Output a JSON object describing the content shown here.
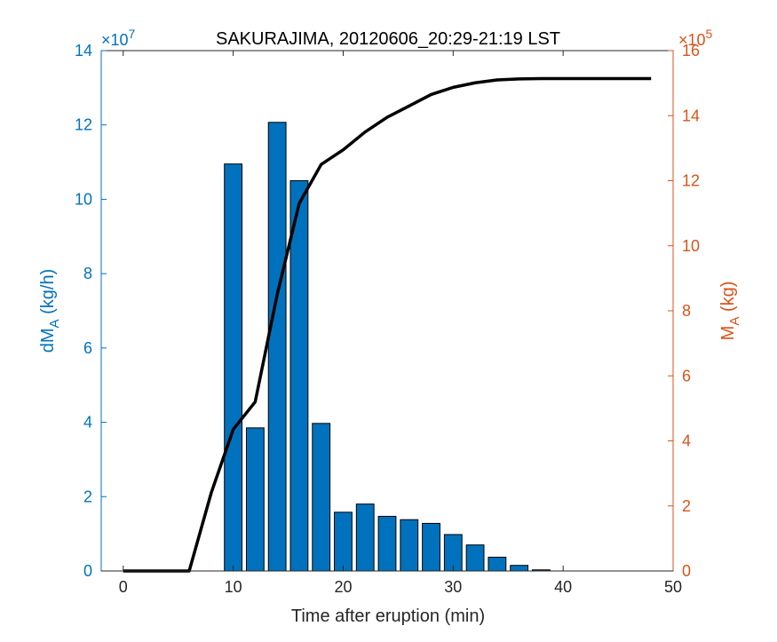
{
  "chart_data": {
    "type": "bar",
    "title": "SAKURAJIMA, 20120606_20:29-21:19 LST",
    "xlabel": "Time after eruption (min)",
    "xlim": [
      -2,
      50
    ],
    "xticks": [
      0,
      10,
      20,
      30,
      40,
      50
    ],
    "left_axis": {
      "label_main": "dM",
      "label_sub": "A",
      "label_unit": "(kg/h)",
      "exponent_base": "×10",
      "exponent_power": "7",
      "ylim": [
        0,
        14
      ],
      "ticks": [
        0,
        2,
        4,
        6,
        8,
        10,
        12,
        14
      ],
      "color": "#0072BD"
    },
    "right_axis": {
      "label_main": "M",
      "label_sub": "A",
      "label_unit": "(kg)",
      "exponent_base": "×10",
      "exponent_power": "5",
      "ylim": [
        0,
        16
      ],
      "ticks": [
        0,
        2,
        4,
        6,
        8,
        10,
        12,
        14,
        16
      ],
      "color": "#D95319"
    },
    "bar_series": {
      "axis": "left",
      "color": "#0072BD",
      "bar_width": 1.6,
      "x": [
        10,
        12,
        14,
        16,
        18,
        20,
        22,
        24,
        26,
        28,
        30,
        32,
        34,
        36,
        38
      ],
      "values": [
        10.95,
        3.85,
        12.07,
        10.5,
        3.97,
        1.58,
        1.8,
        1.47,
        1.38,
        1.28,
        0.98,
        0.7,
        0.37,
        0.15,
        0.03
      ]
    },
    "line_series": {
      "axis": "right",
      "color": "#000000",
      "x": [
        0,
        6,
        8,
        10,
        12,
        14,
        16,
        18,
        20,
        22,
        24,
        26,
        28,
        30,
        32,
        34,
        36,
        38,
        40,
        42,
        44,
        46,
        48
      ],
      "values": [
        0,
        0,
        2.4,
        4.35,
        5.2,
        8.5,
        11.3,
        12.5,
        12.95,
        13.5,
        13.95,
        14.3,
        14.65,
        14.87,
        15.01,
        15.1,
        15.13,
        15.14,
        15.14,
        15.14,
        15.14,
        15.14,
        15.14
      ]
    }
  }
}
